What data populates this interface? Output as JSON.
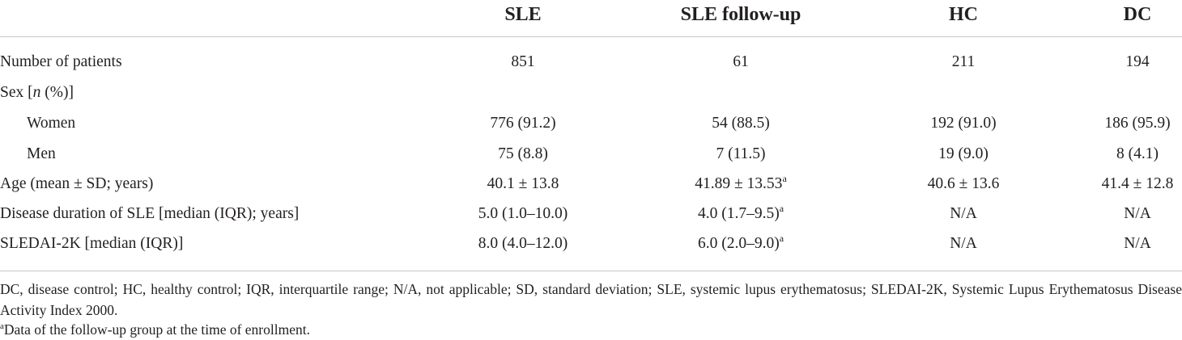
{
  "table": {
    "headers": [
      "",
      "SLE",
      "SLE follow-up",
      "HC",
      "DC"
    ],
    "rows": [
      {
        "label": "Number of patients",
        "sle": "851",
        "followup": "61",
        "hc": "211",
        "dc": "194"
      },
      {
        "label_pre": "Sex [",
        "label_italic": "n",
        "label_post": " (%)]"
      },
      {
        "label": "Women",
        "sle": "776 (91.2)",
        "followup": "54 (88.5)",
        "hc": "192 (91.0)",
        "dc": "186 (95.9)"
      },
      {
        "label": "Men",
        "sle": "75 (8.8)",
        "followup": "7 (11.5)",
        "hc": "19 (9.0)",
        "dc": "8 (4.1)"
      },
      {
        "label": "Age (mean ± SD; years)",
        "sle": "40.1 ± 13.8",
        "followup": "41.89 ± 13.53",
        "followup_sup": "a",
        "hc": "40.6 ± 13.6",
        "dc": "41.4 ± 12.8"
      },
      {
        "label": "Disease duration of SLE [median (IQR); years]",
        "sle": "5.0 (1.0–10.0)",
        "followup": "4.0 (1.7–9.5)",
        "followup_sup": "a",
        "hc": "N/A",
        "dc": "N/A"
      },
      {
        "label": "SLEDAI-2K [median (IQR)]",
        "sle": "8.0 (4.0–12.0)",
        "followup": "6.0 (2.0–9.0)",
        "followup_sup": "a",
        "hc": "N/A",
        "dc": "N/A"
      }
    ]
  },
  "footnotes": {
    "abbreviations": "DC, disease control; HC, healthy control; IQR, interquartile range; N/A, not applicable; SD, standard deviation; SLE, systemic lupus erythematosus; SLEDAI-2K, Systemic Lupus Erythematosus Disease Activity Index 2000.",
    "note_marker": "a",
    "note_text": "Data of the follow-up group at the time of enrollment."
  }
}
